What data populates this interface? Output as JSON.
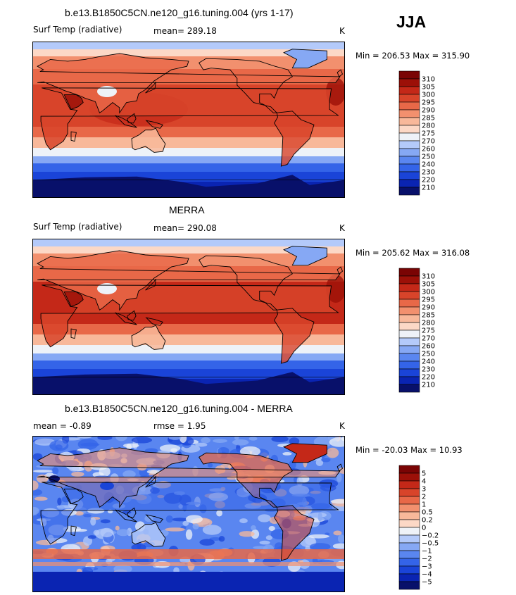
{
  "season": "JJA",
  "colors": {
    "temp_scale": [
      "#08106a",
      "#0a24b2",
      "#1a44d8",
      "#3464e8",
      "#5a86f0",
      "#86a8f4",
      "#b4cafa",
      "#eef2f8",
      "#fcd8c6",
      "#f8b89a",
      "#f2906e",
      "#e86848",
      "#d8442a",
      "#c42818",
      "#9c1008",
      "#7a0404"
    ],
    "diff_scale": [
      "#08106a",
      "#0a24b2",
      "#1a44d8",
      "#3464e8",
      "#5a86f0",
      "#86a8f4",
      "#b4cafa",
      "#eef2f8",
      "#fcd8c6",
      "#f8b89a",
      "#f2906e",
      "#e86848",
      "#d8442a",
      "#c42818",
      "#9c1008",
      "#7a0404"
    ],
    "coastline": "#000000"
  },
  "panels": [
    {
      "title": "b.e13.B1850C5CN.ne120_g16.tuning.004 (yrs 1-17)",
      "left_label": "Surf Temp (radiative)",
      "center_label": "mean=  289.18",
      "units": "K",
      "minmax": "Min = 206.53 Max = 315.90"
    },
    {
      "title": "MERRA",
      "left_label": "Surf Temp (radiative)",
      "center_label": "mean=  290.08",
      "units": "K",
      "minmax": "Min = 205.62 Max = 316.08"
    },
    {
      "title": "b.e13.B1850C5CN.ne120_g16.tuning.004 - MERRA",
      "left_label": "mean =   -0.89",
      "center_label": "rmse =    1.95",
      "units": "K",
      "minmax": "Min = -20.03 Max =  10.93"
    }
  ],
  "chart_data": [
    {
      "type": "heatmap",
      "title": "b.e13.B1850C5CN.ne120_g16.tuning.004 (yrs 1-17)",
      "variable": "Surf Temp (radiative)",
      "units": "K",
      "season": "JJA",
      "mean": 289.18,
      "min": 206.53,
      "max": 315.9,
      "colorbar_levels": [
        210,
        220,
        230,
        240,
        250,
        260,
        270,
        275,
        280,
        285,
        290,
        295,
        300,
        305,
        310
      ],
      "colorbar_labels": [
        "310",
        "305",
        "300",
        "295",
        "290",
        "285",
        "280",
        "275",
        "270",
        "260",
        "250",
        "240",
        "230",
        "220",
        "210"
      ]
    },
    {
      "type": "heatmap",
      "title": "MERRA",
      "variable": "Surf Temp (radiative)",
      "units": "K",
      "season": "JJA",
      "mean": 290.08,
      "min": 205.62,
      "max": 316.08,
      "colorbar_levels": [
        210,
        220,
        230,
        240,
        250,
        260,
        270,
        275,
        280,
        285,
        290,
        295,
        300,
        305,
        310
      ],
      "colorbar_labels": [
        "310",
        "305",
        "300",
        "295",
        "290",
        "285",
        "280",
        "275",
        "270",
        "260",
        "250",
        "240",
        "230",
        "220",
        "210"
      ]
    },
    {
      "type": "heatmap",
      "title": "b.e13.B1850C5CN.ne120_g16.tuning.004 - MERRA",
      "units": "K",
      "season": "JJA",
      "mean": -0.89,
      "rmse": 1.95,
      "min": -20.03,
      "max": 10.93,
      "colorbar_levels": [
        -5,
        -4,
        -3,
        -2,
        -1,
        -0.5,
        -0.2,
        0,
        0.2,
        0.5,
        1,
        2,
        3,
        4,
        5
      ],
      "colorbar_labels": [
        "5",
        "4",
        "3",
        "2",
        "1",
        "0.5",
        "0.2",
        "0",
        "−0.2",
        "−0.5",
        "−1",
        "−2",
        "−3",
        "−4",
        "−5"
      ]
    }
  ]
}
